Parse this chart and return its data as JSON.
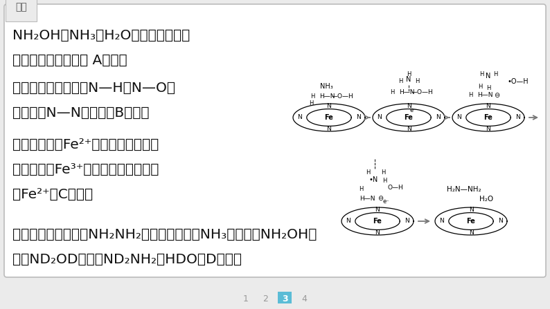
{
  "bg_color": "#ebebeb",
  "card_color": "#ffffff",
  "card_edge_color": "#bbbbbb",
  "title_text": "解析",
  "page_numbers": [
    "1",
    "2",
    "3",
    "4"
  ],
  "active_page": 2,
  "active_page_color": "#5bbcd6",
  "inactive_page_color": "#999999"
}
